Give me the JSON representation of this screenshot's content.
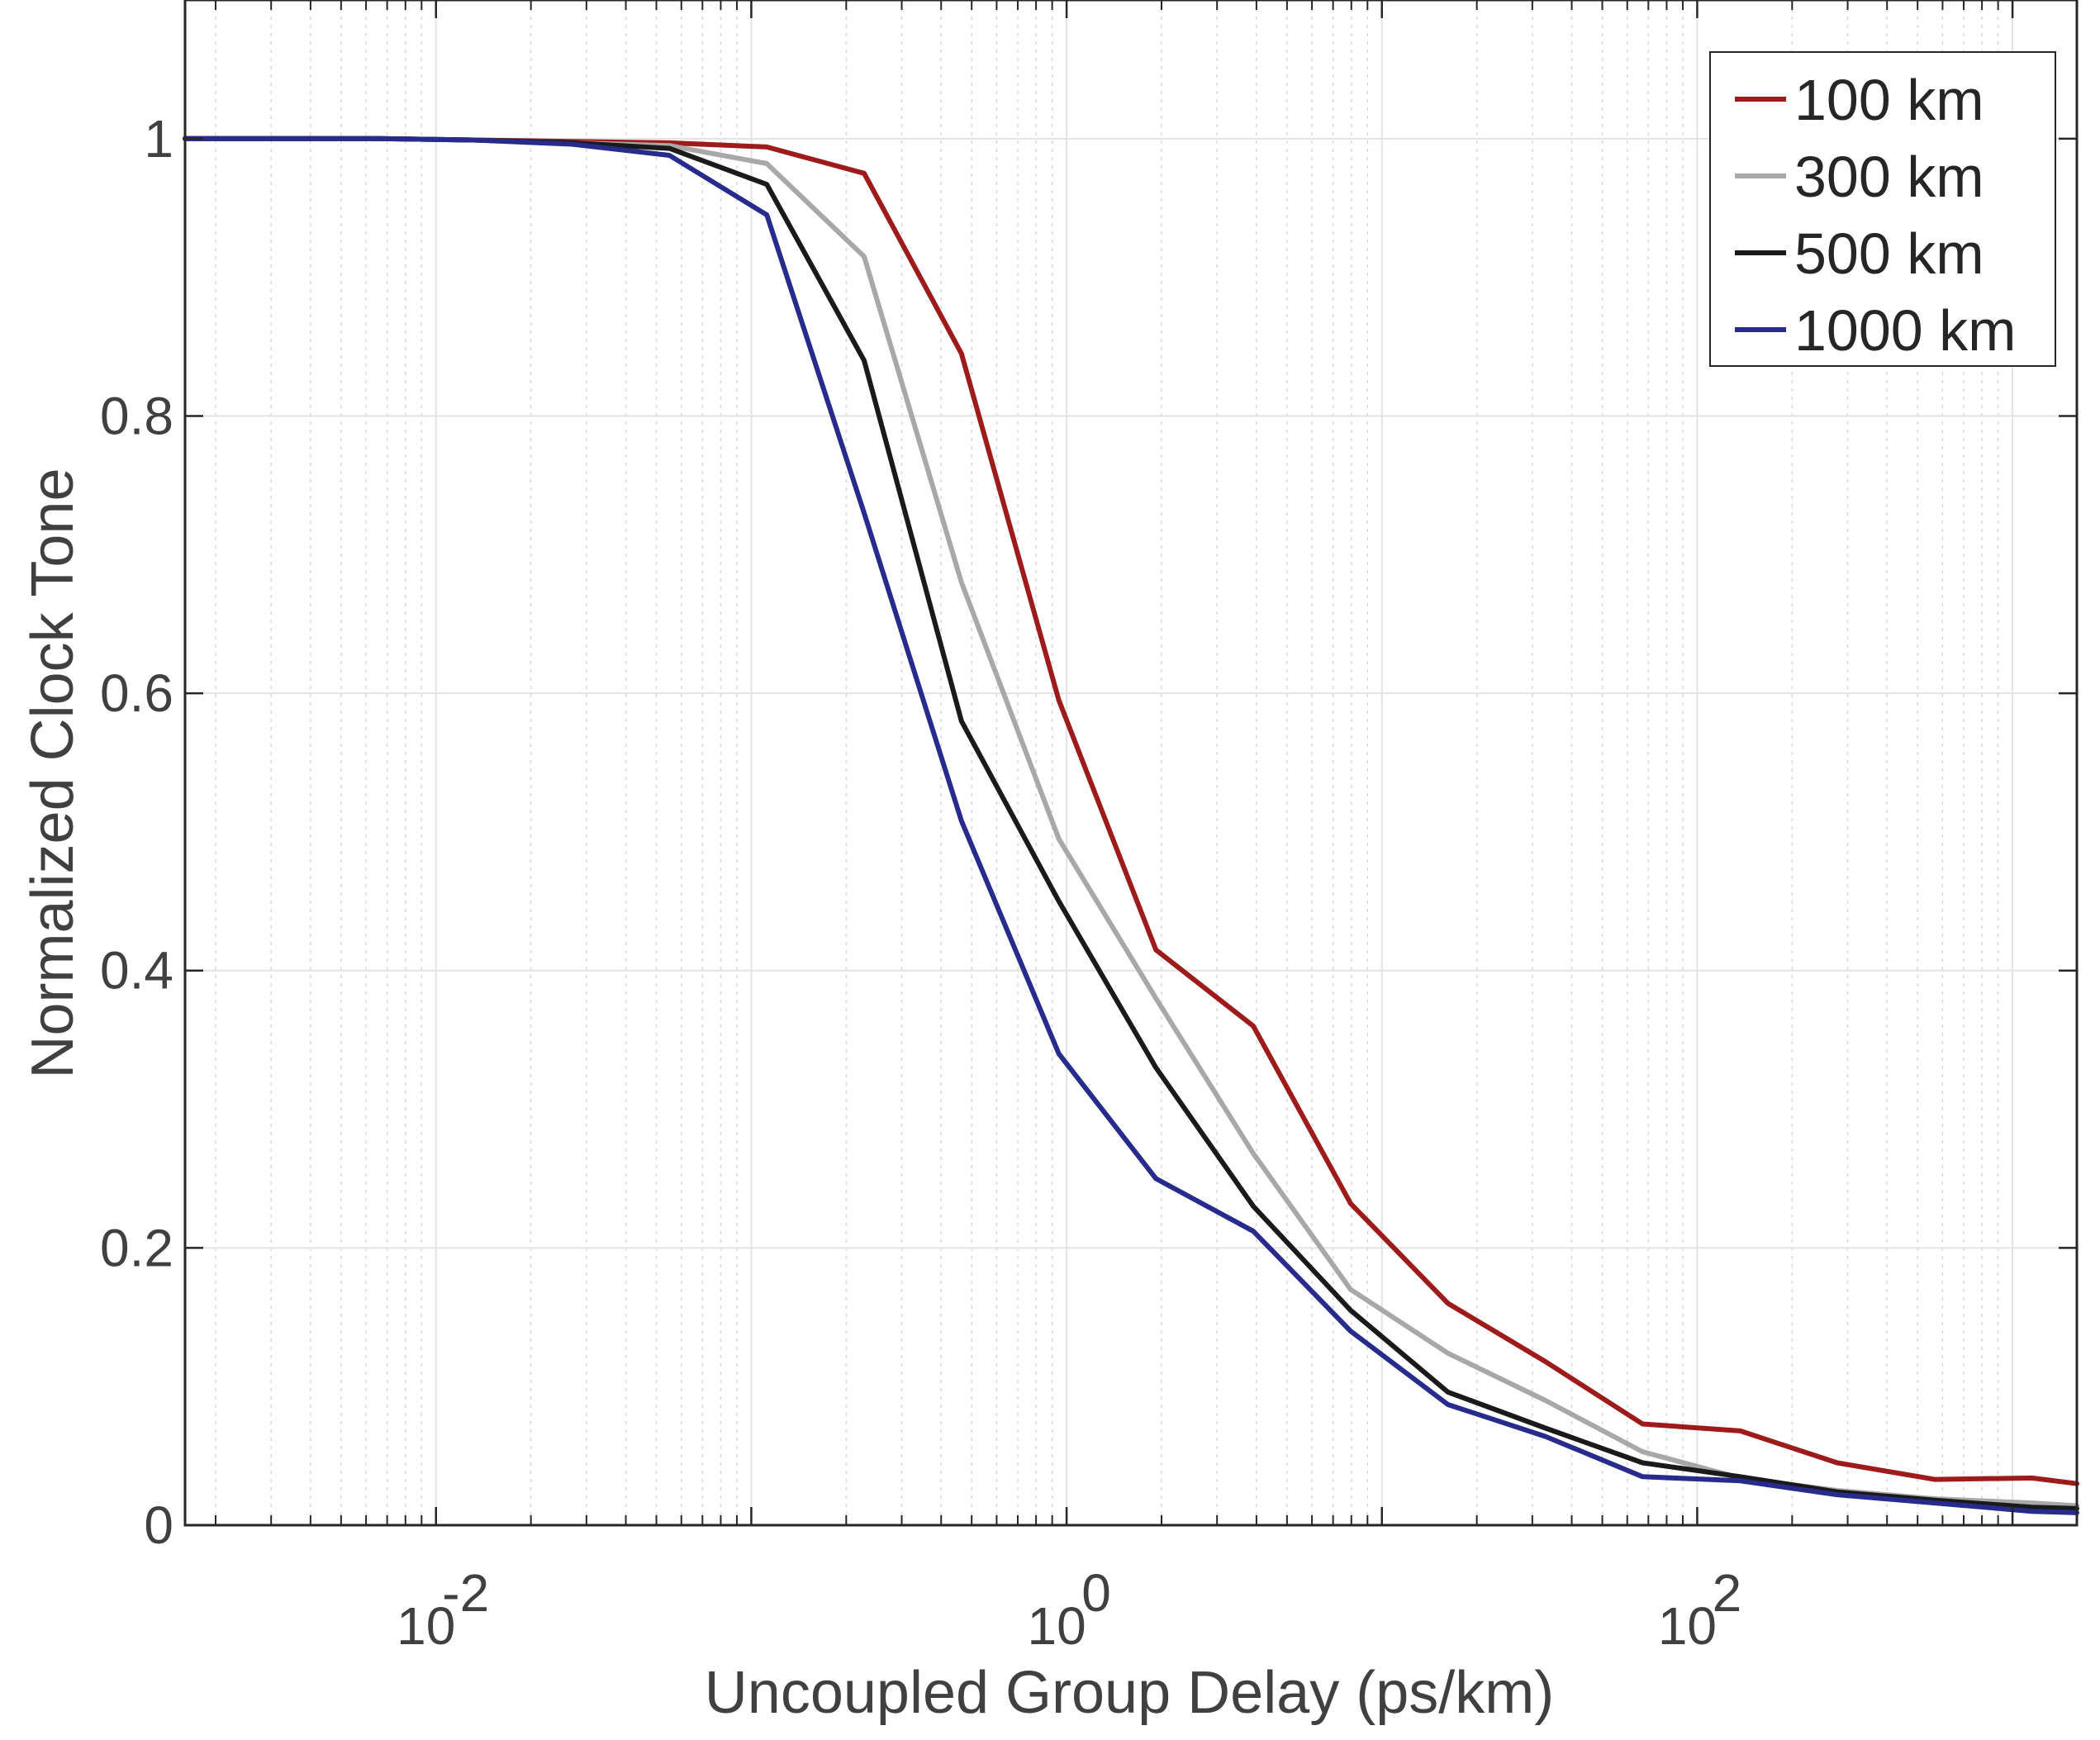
{
  "chart_data": {
    "type": "line",
    "title": "",
    "xlabel": "Uncoupled Group Delay (ps/km)",
    "ylabel": "Normalized Clock Tone",
    "xscale": "log",
    "xlim": [
      0.0016,
      1600
    ],
    "ylim": [
      0,
      1.1
    ],
    "grid": true,
    "legend_position": "top-right",
    "x_ticks": [
      0.01,
      1,
      100
    ],
    "x_tick_labels": [
      {
        "base": "10",
        "exp": "-2"
      },
      {
        "base": "10",
        "exp": "0"
      },
      {
        "base": "10",
        "exp": "2"
      }
    ],
    "y_ticks": [
      0,
      0.2,
      0.4,
      0.6,
      0.8,
      1
    ],
    "y_tick_labels": [
      "0",
      "0.2",
      "0.4",
      "0.6",
      "0.8",
      "1"
    ],
    "x": [
      0.0016,
      0.0032,
      0.0065,
      0.0132,
      0.027,
      0.055,
      0.112,
      0.228,
      0.464,
      0.945,
      1.92,
      3.91,
      7.96,
      16.2,
      33.0,
      67.1,
      137,
      278,
      566,
      1152,
      1600
    ],
    "series": [
      {
        "name": "100 km",
        "color": "#9e1b1b",
        "values": [
          1.0,
          1.0,
          1.0,
          0.999,
          0.998,
          0.997,
          0.994,
          0.975,
          0.845,
          0.595,
          0.415,
          0.36,
          0.232,
          0.16,
          0.118,
          0.073,
          0.068,
          0.045,
          0.033,
          0.034,
          0.03
        ]
      },
      {
        "name": "300 km",
        "color": "#a8a8a8",
        "values": [
          1.0,
          1.0,
          1.0,
          0.999,
          0.997,
          0.995,
          0.982,
          0.915,
          0.68,
          0.495,
          0.38,
          0.268,
          0.17,
          0.124,
          0.09,
          0.053,
          0.034,
          0.025,
          0.019,
          0.016,
          0.014
        ]
      },
      {
        "name": "500 km",
        "color": "#1a1a1a",
        "values": [
          1.0,
          1.0,
          1.0,
          0.999,
          0.997,
          0.993,
          0.967,
          0.84,
          0.58,
          0.45,
          0.33,
          0.23,
          0.155,
          0.096,
          0.07,
          0.045,
          0.035,
          0.024,
          0.018,
          0.013,
          0.012
        ]
      },
      {
        "name": "1000 km",
        "color": "#262b8c",
        "values": [
          1.0,
          1.0,
          1.0,
          0.999,
          0.996,
          0.988,
          0.945,
          0.73,
          0.508,
          0.34,
          0.25,
          0.212,
          0.14,
          0.087,
          0.064,
          0.035,
          0.032,
          0.022,
          0.016,
          0.01,
          0.009
        ]
      }
    ]
  }
}
